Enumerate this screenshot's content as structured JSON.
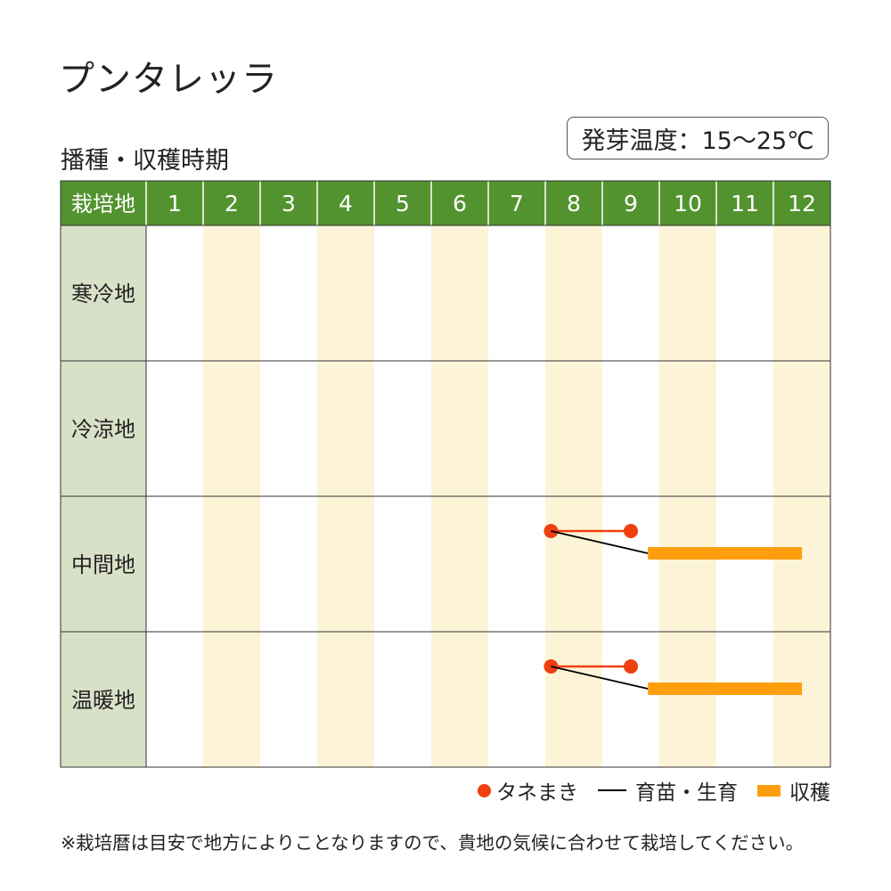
{
  "title": "プンタレッラ",
  "temperature_label": "発芽温度：15～25℃",
  "legend": {
    "sowing": "タネまき",
    "nursery": "育苗・生育",
    "harvest": "収穫"
  },
  "footnote": "※栽培暦は目安で地方によりことなりますので、貴地の気候に合わせて栽培してください。",
  "colors": {
    "header_green": "#52932f",
    "row_label_bg": "#d9e0c8",
    "alt_column": "#fdf4d8",
    "sowing": "#f0400f",
    "harvest": "#ff9e0d",
    "nursery": "#000000"
  },
  "chart_data": {
    "type": "gantt",
    "title": "播種・収穫時期",
    "row_header": "栽培地",
    "columns": [
      "1",
      "2",
      "3",
      "4",
      "5",
      "6",
      "7",
      "8",
      "9",
      "10",
      "11",
      "12"
    ],
    "rows": [
      {
        "label": "寒冷地",
        "schedule": []
      },
      {
        "label": "冷涼地",
        "schedule": []
      },
      {
        "label": "中間地",
        "schedule": [
          {
            "kind": "sowing",
            "start": 8.1,
            "end": 9.5
          },
          {
            "kind": "nursery",
            "from": 8.1,
            "to": 9.8
          },
          {
            "kind": "harvest",
            "start": 9.8,
            "end": 12.5
          }
        ]
      },
      {
        "label": "温暖地",
        "schedule": [
          {
            "kind": "sowing",
            "start": 8.1,
            "end": 9.5
          },
          {
            "kind": "nursery",
            "from": 8.1,
            "to": 9.8
          },
          {
            "kind": "harvest",
            "start": 9.8,
            "end": 12.5
          }
        ]
      }
    ]
  }
}
